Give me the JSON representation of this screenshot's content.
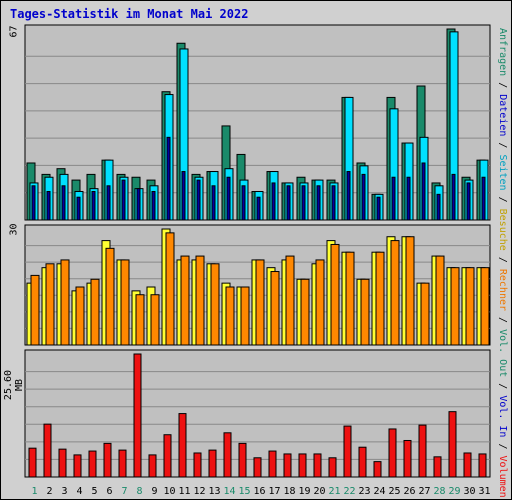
{
  "title": "Tages-Statistik im Monat Mai 2022",
  "colors": {
    "background": "#d0d0d0",
    "panel": "#c0c0c0",
    "grid": "#888888",
    "anfragen": "#1a8a6a",
    "dateien": "#00e0ff",
    "seiten": "#0000a0",
    "besuche": "#ffff33",
    "rechner": "#ff8800",
    "volumen": "#ee1111",
    "weekend_day": "#1a8a6a",
    "weekday": "#000000"
  },
  "right_labels": {
    "top": [
      {
        "text": "Anfragen",
        "color": "#1a8a6a"
      },
      {
        "text": "Dateien",
        "color": "#0000cc"
      },
      {
        "text": "Seiten",
        "color": "#00a0c0"
      },
      {
        "text": "Besuche",
        "color": "#c0a000"
      },
      {
        "text": "Rechner",
        "color": "#ee7700"
      },
      {
        "text": "Vol. Out",
        "color": "#1a8a6a"
      },
      {
        "text": "Vol. In",
        "color": "#0000cc"
      },
      {
        "text": "Volumen",
        "color": "#ee1111"
      }
    ],
    "separator": " / "
  },
  "chart_data": [
    {
      "type": "bar",
      "name": "Anfragen / Dateien / Seiten",
      "y_tick_label": "67",
      "ylim": [
        0,
        67
      ],
      "x": [
        1,
        2,
        3,
        4,
        5,
        6,
        7,
        8,
        9,
        10,
        11,
        12,
        13,
        14,
        15,
        16,
        17,
        18,
        19,
        20,
        21,
        22,
        23,
        24,
        25,
        26,
        27,
        28,
        29,
        30,
        31
      ],
      "series": [
        {
          "name": "Anfragen",
          "values": [
            20,
            16,
            18,
            14,
            16,
            21,
            16,
            15,
            14,
            45,
            62,
            16,
            17,
            33,
            23,
            10,
            17,
            13,
            15,
            14,
            14,
            43,
            20,
            9,
            43,
            27,
            47,
            13,
            67,
            15,
            21
          ]
        },
        {
          "name": "Dateien",
          "values": [
            13,
            15,
            16,
            10,
            11,
            21,
            15,
            11,
            12,
            44,
            60,
            15,
            17,
            18,
            14,
            10,
            17,
            13,
            13,
            14,
            13,
            43,
            19,
            9,
            39,
            27,
            29,
            12,
            66,
            14,
            21
          ]
        },
        {
          "name": "Seiten",
          "values": [
            12,
            10,
            12,
            8,
            10,
            12,
            14,
            11,
            10,
            29,
            17,
            14,
            12,
            15,
            12,
            8,
            13,
            12,
            12,
            12,
            12,
            17,
            16,
            8,
            15,
            15,
            20,
            9,
            16,
            13,
            15
          ]
        }
      ]
    },
    {
      "type": "bar",
      "name": "Besuche / Rechner",
      "y_tick_label": "30",
      "ylim": [
        0,
        30
      ],
      "x": [
        1,
        2,
        3,
        4,
        5,
        6,
        7,
        8,
        9,
        10,
        11,
        12,
        13,
        14,
        15,
        16,
        17,
        18,
        19,
        20,
        21,
        22,
        23,
        24,
        25,
        26,
        27,
        28,
        29,
        30,
        31
      ],
      "series": [
        {
          "name": "Besuche",
          "values": [
            16,
            20,
            21,
            14,
            16,
            27,
            22,
            14,
            15,
            30,
            22,
            22,
            21,
            16,
            15,
            22,
            20,
            22,
            17,
            21,
            27,
            24,
            17,
            24,
            28,
            28,
            16,
            23,
            20,
            20,
            20
          ]
        },
        {
          "name": "Rechner",
          "values": [
            18,
            21,
            22,
            15,
            17,
            25,
            22,
            13,
            13,
            29,
            23,
            23,
            21,
            15,
            15,
            22,
            19,
            23,
            17,
            22,
            26,
            24,
            17,
            24,
            27,
            28,
            16,
            23,
            20,
            20,
            20
          ]
        }
      ]
    },
    {
      "type": "bar",
      "name": "Volumen",
      "y_tick_label": "25.60 MB",
      "ylim": [
        0,
        25.6
      ],
      "x": [
        1,
        2,
        3,
        4,
        5,
        6,
        7,
        8,
        9,
        10,
        11,
        12,
        13,
        14,
        15,
        16,
        17,
        18,
        19,
        20,
        21,
        22,
        23,
        24,
        25,
        26,
        27,
        28,
        29,
        30,
        31
      ],
      "series": [
        {
          "name": "Volumen",
          "values": [
            6.0,
            11.0,
            5.8,
            4.6,
            5.4,
            7.0,
            5.6,
            25.6,
            4.6,
            8.8,
            13.2,
            5.0,
            5.6,
            9.2,
            7.0,
            4.0,
            5.4,
            4.8,
            4.8,
            4.8,
            4.0,
            10.6,
            6.2,
            3.2,
            10.0,
            7.6,
            10.8,
            4.2,
            13.6,
            5.0,
            4.8
          ]
        }
      ]
    }
  ],
  "weekend_days": [
    1,
    7,
    8,
    14,
    15,
    21,
    22,
    28,
    29
  ]
}
